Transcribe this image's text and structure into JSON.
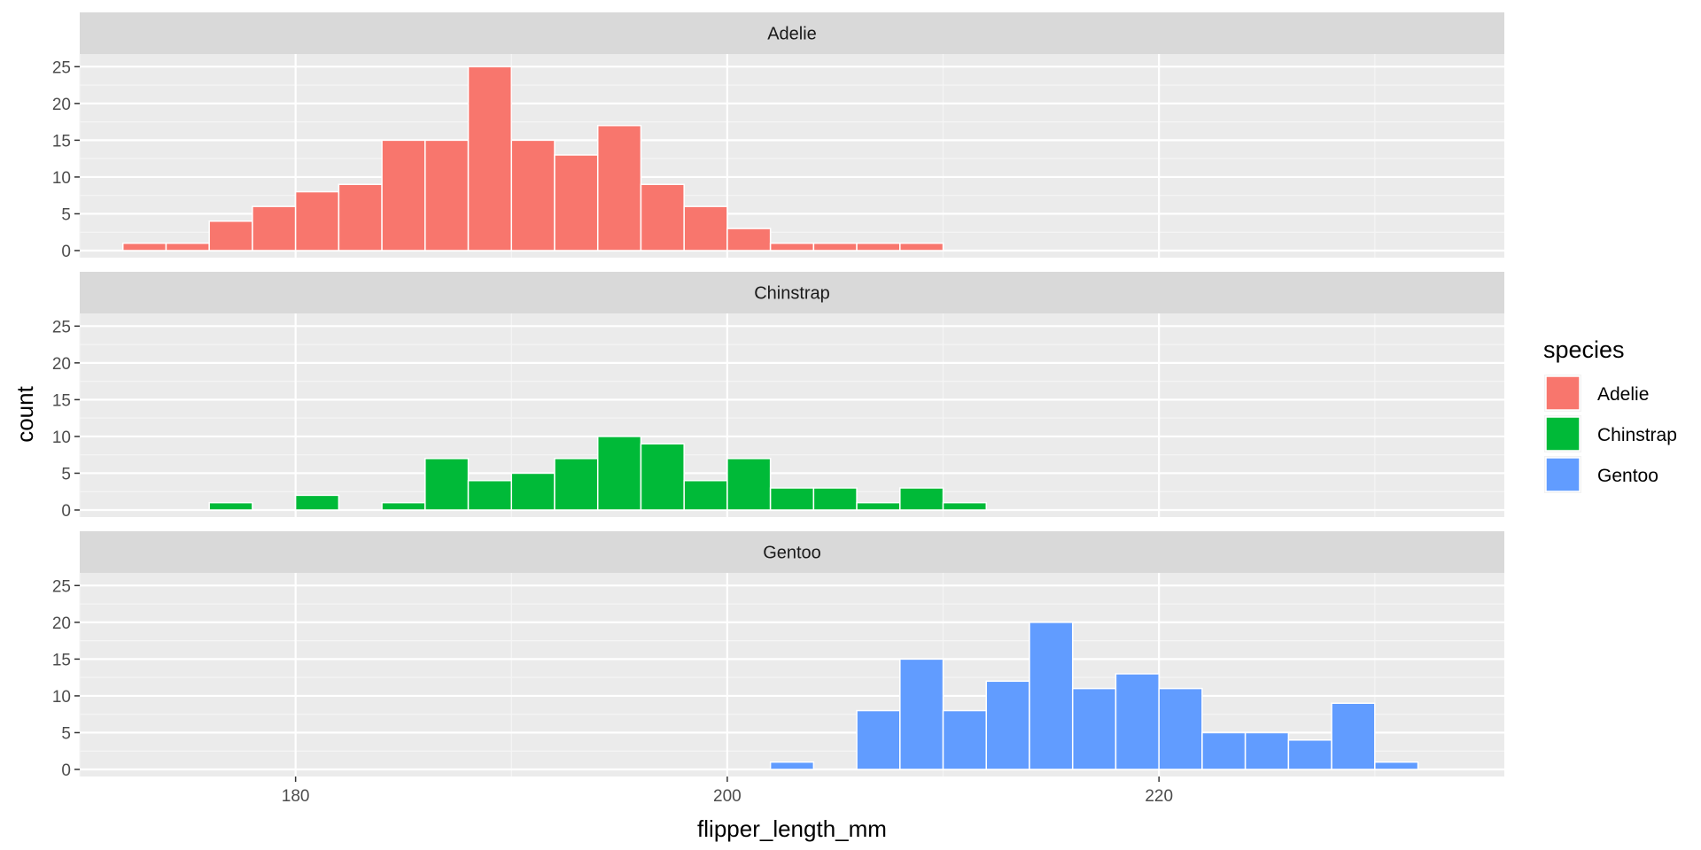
{
  "chart_data": {
    "type": "bar",
    "subtype": "faceted-histogram",
    "xlabel": "flipper_length_mm",
    "ylabel": "count",
    "xlim": [
      170,
      236
    ],
    "ylim": [
      0,
      26
    ],
    "x_ticks": [
      180,
      200,
      220
    ],
    "y_ticks": [
      0,
      5,
      10,
      15,
      20,
      25
    ],
    "bin_width": 2,
    "grid": true,
    "legend": {
      "title": "species",
      "placement": "right",
      "entries": [
        {
          "label": "Adelie",
          "color": "#F8766D"
        },
        {
          "label": "Chinstrap",
          "color": "#00BA38"
        },
        {
          "label": "Gentoo",
          "color": "#619CFF"
        }
      ]
    },
    "facets": [
      {
        "label": "Adelie",
        "color": "#F8766D",
        "bins": [
          {
            "x": 173,
            "count": 1
          },
          {
            "x": 175,
            "count": 1
          },
          {
            "x": 177,
            "count": 4
          },
          {
            "x": 179,
            "count": 6
          },
          {
            "x": 181,
            "count": 8
          },
          {
            "x": 183,
            "count": 9
          },
          {
            "x": 185,
            "count": 15
          },
          {
            "x": 187,
            "count": 15
          },
          {
            "x": 189,
            "count": 25
          },
          {
            "x": 191,
            "count": 15
          },
          {
            "x": 193,
            "count": 13
          },
          {
            "x": 195,
            "count": 17
          },
          {
            "x": 197,
            "count": 9
          },
          {
            "x": 199,
            "count": 6
          },
          {
            "x": 201,
            "count": 3
          },
          {
            "x": 203,
            "count": 1
          },
          {
            "x": 205,
            "count": 1
          },
          {
            "x": 207,
            "count": 1
          },
          {
            "x": 209,
            "count": 1
          }
        ]
      },
      {
        "label": "Chinstrap",
        "color": "#00BA38",
        "bins": [
          {
            "x": 177,
            "count": 1
          },
          {
            "x": 181,
            "count": 2
          },
          {
            "x": 185,
            "count": 1
          },
          {
            "x": 187,
            "count": 7
          },
          {
            "x": 189,
            "count": 4
          },
          {
            "x": 191,
            "count": 5
          },
          {
            "x": 193,
            "count": 7
          },
          {
            "x": 195,
            "count": 10
          },
          {
            "x": 197,
            "count": 9
          },
          {
            "x": 199,
            "count": 4
          },
          {
            "x": 201,
            "count": 7
          },
          {
            "x": 203,
            "count": 3
          },
          {
            "x": 205,
            "count": 3
          },
          {
            "x": 207,
            "count": 1
          },
          {
            "x": 209,
            "count": 3
          },
          {
            "x": 211,
            "count": 1
          }
        ]
      },
      {
        "label": "Gentoo",
        "color": "#619CFF",
        "bins": [
          {
            "x": 203,
            "count": 1
          },
          {
            "x": 207,
            "count": 8
          },
          {
            "x": 209,
            "count": 15
          },
          {
            "x": 211,
            "count": 8
          },
          {
            "x": 213,
            "count": 12
          },
          {
            "x": 215,
            "count": 20
          },
          {
            "x": 217,
            "count": 11
          },
          {
            "x": 219,
            "count": 13
          },
          {
            "x": 221,
            "count": 11
          },
          {
            "x": 223,
            "count": 5
          },
          {
            "x": 225,
            "count": 5
          },
          {
            "x": 227,
            "count": 4
          },
          {
            "x": 229,
            "count": 9
          },
          {
            "x": 231,
            "count": 1
          }
        ]
      }
    ]
  }
}
